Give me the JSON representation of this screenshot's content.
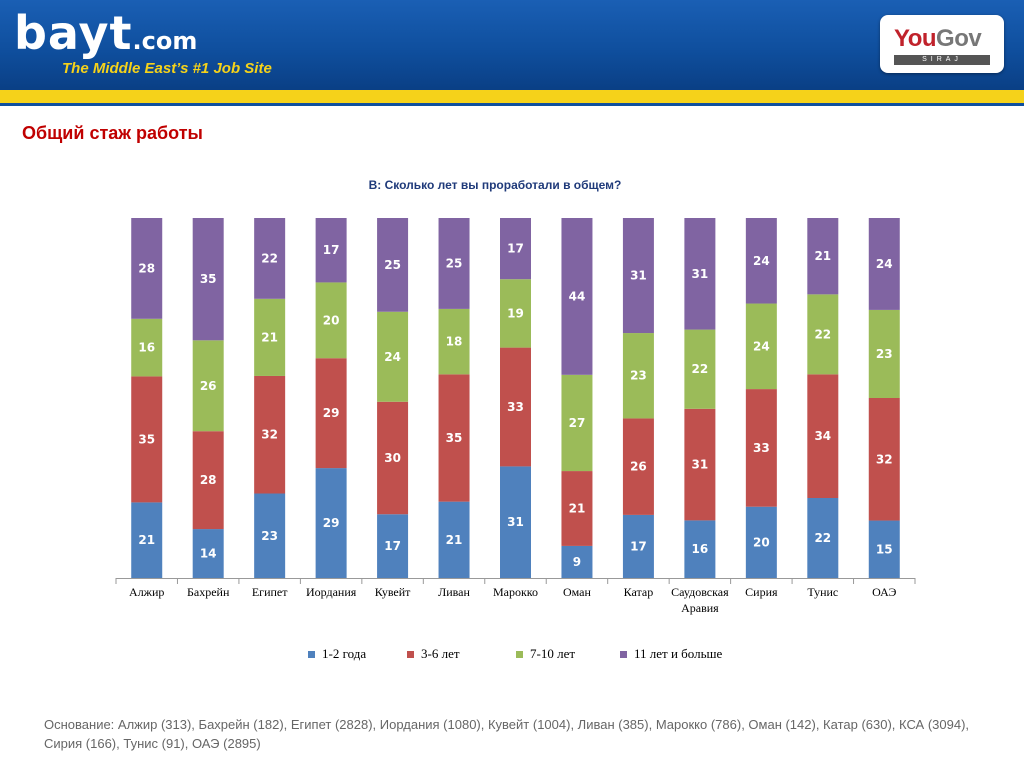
{
  "header": {
    "logo_text": "bayt",
    "logo_suffix": ".com",
    "tagline": "The Middle East’s #1 Job Site",
    "partner_logo_text_1": "You",
    "partner_logo_text_2": "Gov",
    "partner_logo_sub": "SIRAJ"
  },
  "page": {
    "title": "Общий стаж работы",
    "question": "В: Сколько лет вы проработали в общем?",
    "footnote": "Основание:  Алжир (313), Бахрейн (182), Египет (2828), Иордания (1080), Кувейт (1004), Ливан (385), Марокко (786), Оман (142), Катар (630),  КСА (3094), Сирия (166), Тунис (91), ОАЭ (2895)"
  },
  "colors": {
    "series": [
      "#4f81bd",
      "#c0504d",
      "#9bbb59",
      "#8064a2"
    ]
  },
  "chart_data": {
    "type": "bar",
    "stacked": true,
    "categories": [
      "Алжир",
      "Бахрейн",
      "Египет",
      "Иордания",
      "Кувейт",
      "Ливан",
      "Марокко",
      "Оман",
      "Катар",
      "Саудовская Аравия",
      "Сирия",
      "Тунис",
      "ОАЭ"
    ],
    "series": [
      {
        "name": "1-2 года",
        "values": [
          21,
          14,
          23,
          29,
          17,
          21,
          31,
          9,
          17,
          16,
          20,
          22,
          15
        ]
      },
      {
        "name": "3-6 лет",
        "values": [
          35,
          28,
          32,
          29,
          30,
          35,
          33,
          21,
          26,
          31,
          33,
          34,
          32
        ]
      },
      {
        "name": "7-10 лет",
        "values": [
          16,
          26,
          21,
          20,
          24,
          18,
          19,
          27,
          23,
          22,
          24,
          22,
          23
        ]
      },
      {
        "name": "11 лет и больше",
        "values": [
          28,
          35,
          22,
          17,
          25,
          25,
          17,
          44,
          31,
          31,
          24,
          21,
          24
        ]
      }
    ],
    "legend_position": "bottom",
    "grid": false
  }
}
